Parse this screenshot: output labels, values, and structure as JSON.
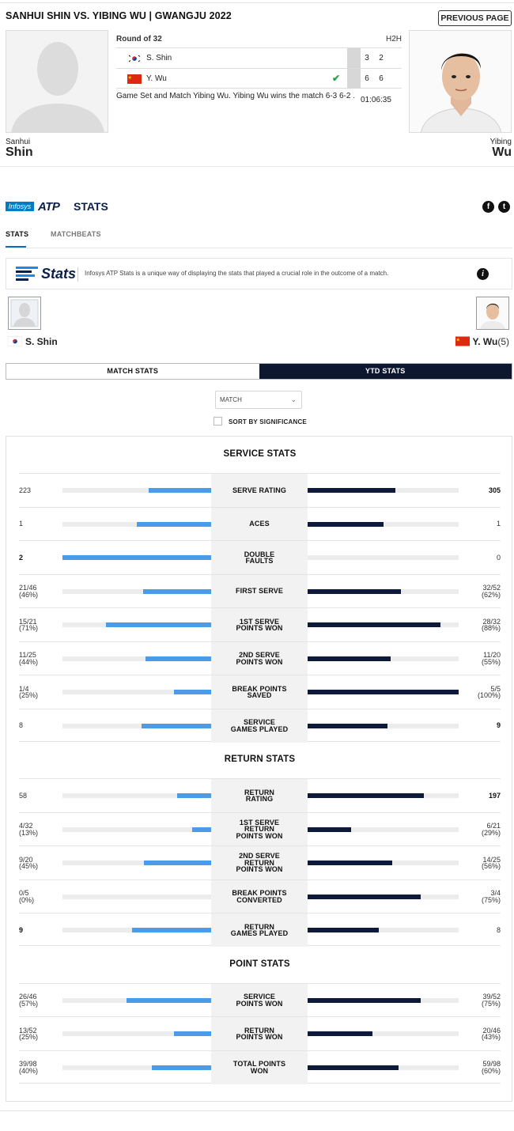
{
  "match": {
    "title": "SANHUI SHIN VS. YIBING WU | GWANGJU 2022",
    "prev_button": "PREVIOUS PAGE",
    "round": "Round of 32",
    "h2h": "H2H",
    "players": [
      {
        "short": "S. Shin",
        "sets": [
          "3",
          "2"
        ],
        "first": "Sanhui",
        "last": "Shin",
        "winner": false
      },
      {
        "short": "Y. Wu",
        "sets": [
          "6",
          "6"
        ],
        "first": "Yibing",
        "last": "Wu",
        "winner": true
      }
    ],
    "summary": "Game Set and Match Yibing Wu. Yibing Wu wins the match 6-3 6-2 .",
    "duration": "01:06:35"
  },
  "stats_header": {
    "infosys": "Infosys",
    "atp": "ATP",
    "stats": "STATS",
    "tabs": [
      "STATS",
      "MATCHBEATS"
    ],
    "brand": "Stats",
    "info_text": "Infosys ATP Stats is a unique way of displaying the stats that played a crucial role in the outcome of a match.",
    "left_player": "S. Shin",
    "right_player": "Y. Wu",
    "right_seed": "(5)",
    "toggle": [
      "MATCH STATS",
      "YTD STATS"
    ],
    "select_value": "MATCH",
    "sort_label": "SORT BY SIGNIFICANCE"
  },
  "colors": {
    "left_bar": "#4a9be8",
    "right_bar": "#0d1a3c",
    "toggle_active": "#0d1730",
    "check": "#22a34a"
  },
  "sections": [
    {
      "title": "SERVICE STATS",
      "rows": [
        {
          "label": "SERVE RATING",
          "left": "223",
          "left_pct": "",
          "right": "305",
          "right_pct": "",
          "lb": 0.42,
          "rb": 0.58,
          "win": "right"
        },
        {
          "label": "ACES",
          "left": "1",
          "left_pct": "",
          "right": "1",
          "right_pct": "",
          "lb": 0.5,
          "rb": 0.5,
          "win": "none"
        },
        {
          "label": "DOUBLE FAULTS",
          "left": "2",
          "left_pct": "",
          "right": "0",
          "right_pct": "",
          "lb": 1.0,
          "rb": 0.0,
          "win": "left"
        },
        {
          "label": "FIRST SERVE",
          "left": "21/46",
          "left_pct": "(46%)",
          "right": "32/52",
          "right_pct": "(62%)",
          "lb": 0.46,
          "rb": 0.62,
          "win": "right"
        },
        {
          "label": "1ST SERVE POINTS WON",
          "left": "15/21",
          "left_pct": "(71%)",
          "right": "28/32",
          "right_pct": "(88%)",
          "lb": 0.71,
          "rb": 0.88,
          "win": "right"
        },
        {
          "label": "2ND SERVE POINTS WON",
          "left": "11/25",
          "left_pct": "(44%)",
          "right": "11/20",
          "right_pct": "(55%)",
          "lb": 0.44,
          "rb": 0.55,
          "win": "right"
        },
        {
          "label": "BREAK POINTS SAVED",
          "left": "1/4",
          "left_pct": "(25%)",
          "right": "5/5",
          "right_pct": "(100%)",
          "lb": 0.25,
          "rb": 1.0,
          "win": "right"
        },
        {
          "label": "SERVICE GAMES PLAYED",
          "left": "8",
          "left_pct": "",
          "right": "9",
          "right_pct": "",
          "lb": 0.47,
          "rb": 0.53,
          "win": "right"
        }
      ]
    },
    {
      "title": "RETURN STATS",
      "rows": [
        {
          "label": "RETURN RATING",
          "left": "58",
          "left_pct": "",
          "right": "197",
          "right_pct": "",
          "lb": 0.23,
          "rb": 0.77,
          "win": "right"
        },
        {
          "label": "1ST SERVE RETURN POINTS WON",
          "left": "4/32",
          "left_pct": "(13%)",
          "right": "6/21",
          "right_pct": "(29%)",
          "lb": 0.13,
          "rb": 0.29,
          "win": "right"
        },
        {
          "label": "2ND SERVE RETURN POINTS WON",
          "left": "9/20",
          "left_pct": "(45%)",
          "right": "14/25",
          "right_pct": "(56%)",
          "lb": 0.45,
          "rb": 0.56,
          "win": "right"
        },
        {
          "label": "BREAK POINTS CONVERTED",
          "left": "0/5",
          "left_pct": "(0%)",
          "right": "3/4",
          "right_pct": "(75%)",
          "lb": 0.0,
          "rb": 0.75,
          "win": "right"
        },
        {
          "label": "RETURN GAMES PLAYED",
          "left": "9",
          "left_pct": "",
          "right": "8",
          "right_pct": "",
          "lb": 0.53,
          "rb": 0.47,
          "win": "left"
        }
      ]
    },
    {
      "title": "POINT STATS",
      "rows": [
        {
          "label": "SERVICE POINTS WON",
          "left": "26/46",
          "left_pct": "(57%)",
          "right": "39/52",
          "right_pct": "(75%)",
          "lb": 0.57,
          "rb": 0.75,
          "win": "right"
        },
        {
          "label": "RETURN POINTS WON",
          "left": "13/52",
          "left_pct": "(25%)",
          "right": "20/46",
          "right_pct": "(43%)",
          "lb": 0.25,
          "rb": 0.43,
          "win": "right"
        },
        {
          "label": "TOTAL POINTS WON",
          "left": "39/98",
          "left_pct": "(40%)",
          "right": "59/98",
          "right_pct": "(60%)",
          "lb": 0.4,
          "rb": 0.6,
          "win": "right"
        }
      ]
    }
  ]
}
